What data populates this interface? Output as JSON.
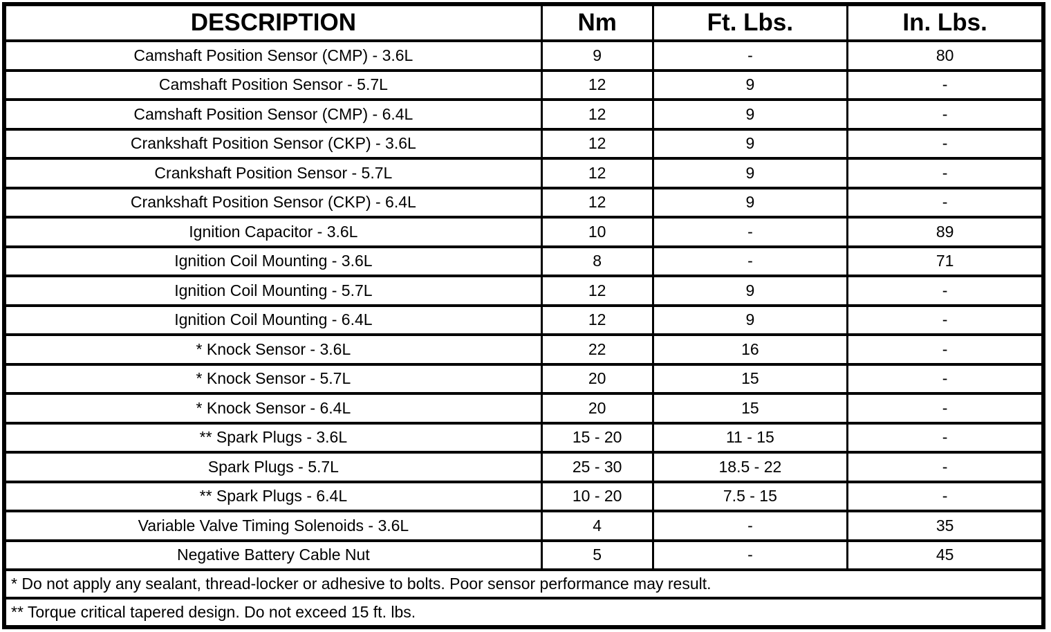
{
  "table": {
    "columns": [
      "DESCRIPTION",
      "Nm",
      "Ft. Lbs.",
      "In. Lbs."
    ],
    "rows": [
      [
        "Camshaft Position Sensor (CMP) - 3.6L",
        "9",
        "-",
        "80"
      ],
      [
        "Camshaft Position Sensor - 5.7L",
        "12",
        "9",
        "-"
      ],
      [
        "Camshaft Position Sensor (CMP) - 6.4L",
        "12",
        "9",
        "-"
      ],
      [
        "Crankshaft Position Sensor (CKP) - 3.6L",
        "12",
        "9",
        "-"
      ],
      [
        "Crankshaft Position Sensor - 5.7L",
        "12",
        "9",
        "-"
      ],
      [
        "Crankshaft Position Sensor (CKP) - 6.4L",
        "12",
        "9",
        "-"
      ],
      [
        "Ignition Capacitor - 3.6L",
        "10",
        "-",
        "89"
      ],
      [
        "Ignition Coil Mounting - 3.6L",
        "8",
        "-",
        "71"
      ],
      [
        "Ignition Coil Mounting - 5.7L",
        "12",
        "9",
        "-"
      ],
      [
        "Ignition Coil Mounting - 6.4L",
        "12",
        "9",
        "-"
      ],
      [
        "* Knock Sensor - 3.6L",
        "22",
        "16",
        "-"
      ],
      [
        "* Knock Sensor - 5.7L",
        "20",
        "15",
        "-"
      ],
      [
        "* Knock Sensor - 6.4L",
        "20",
        "15",
        "-"
      ],
      [
        "** Spark Plugs - 3.6L",
        "15 - 20",
        "11 - 15",
        "-"
      ],
      [
        "Spark Plugs - 5.7L",
        "25 - 30",
        "18.5 - 22",
        "-"
      ],
      [
        "** Spark Plugs - 6.4L",
        "10 - 20",
        "7.5 - 15",
        "-"
      ],
      [
        "Variable Valve Timing Solenoids - 3.6L",
        "4",
        "-",
        "35"
      ],
      [
        "Negative Battery Cable Nut",
        "5",
        "-",
        "45"
      ]
    ],
    "footnotes": [
      "* Do not apply any sealant, thread-locker or adhesive to bolts. Poor sensor performance may result.",
      "** Torque critical tapered design. Do not exceed 15 ft. lbs."
    ]
  },
  "colors": {
    "border": "#000000",
    "background": "#ffffff",
    "text": "#000000"
  }
}
